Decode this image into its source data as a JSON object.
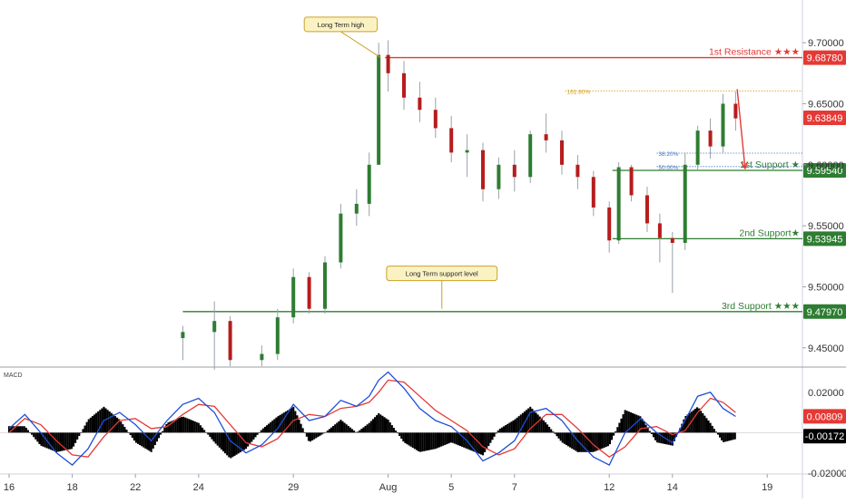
{
  "chart_data": {
    "type": "candlestick",
    "colors": {
      "up": "#2e7d32",
      "down": "#b71c1c",
      "resistance": "#e53935",
      "support": "#2e7d32",
      "macd_line": "#1e4fd8",
      "signal_line": "#e53935",
      "histogram": "#000000",
      "arrow": "#e53935",
      "fib_orange": "#d4a017",
      "fib_blue": "#4a78c2",
      "callout_bg": "#fbf2c4",
      "callout_border": "#c9a227"
    },
    "x_axis": {
      "ticks": [
        {
          "label": "16",
          "day": 0
        },
        {
          "label": "18",
          "day": 2
        },
        {
          "label": "22",
          "day": 4
        },
        {
          "label": "24",
          "day": 6
        },
        {
          "label": "29",
          "day": 9
        },
        {
          "label": "Aug",
          "day": 12
        },
        {
          "label": "5",
          "day": 14
        },
        {
          "label": "7",
          "day": 16
        },
        {
          "label": "12",
          "day": 19
        },
        {
          "label": "14",
          "day": 21
        },
        {
          "label": "19",
          "day": 24
        }
      ]
    },
    "price_axis": {
      "range": [
        9.435,
        9.735
      ],
      "ticks": [
        {
          "value": 9.7,
          "label": "9.70000"
        },
        {
          "value": 9.65,
          "label": "9.65000"
        },
        {
          "value": 9.6,
          "label": "9.60000"
        },
        {
          "value": 9.55,
          "label": "9.55000"
        },
        {
          "value": 9.5,
          "label": "9.50000"
        },
        {
          "value": 9.45,
          "label": "9.45000"
        }
      ],
      "current_price": {
        "value": 9.63849,
        "label": "9.63849"
      }
    },
    "levels": [
      {
        "name": "1st Resistance ★★★",
        "value": 9.6878,
        "label": "9.68780",
        "kind": "resistance",
        "from_day": 11.9
      },
      {
        "name": "1st Support ★",
        "value": 9.5954,
        "label": "9.59540",
        "kind": "support",
        "from_day": 19.1
      },
      {
        "name": "2nd Support★",
        "value": 9.53945,
        "label": "9.53945",
        "kind": "support",
        "from_day": 19.1
      },
      {
        "name": "3rd Support ★★★",
        "value": 9.4797,
        "label": "9.47970",
        "kind": "support",
        "from_day": 5.5
      }
    ],
    "fib_levels": [
      {
        "label": "161.80%",
        "value": 9.6605,
        "from_day": 17.6,
        "color": "orange"
      },
      {
        "label": "38.20%",
        "value": 9.6095,
        "from_day": 20.5,
        "color": "blue"
      },
      {
        "label": "50.00%",
        "value": 9.5985,
        "from_day": 20.5,
        "color": "blue"
      }
    ],
    "annotations": [
      {
        "text": "Long Term high",
        "day": 10.5,
        "price": 9.715,
        "target_day": 11.75,
        "target_price": 9.688
      },
      {
        "text": "Long Term support level",
        "day": 13.7,
        "price": 9.511,
        "target_day": 13.7,
        "target_price": 9.482
      }
    ],
    "arrow": {
      "from_day": 23.05,
      "from_price": 9.662,
      "to_day": 23.3,
      "to_price": 9.597
    },
    "ohlc": [
      [
        5.5,
        9.458,
        9.468,
        9.44,
        9.463
      ],
      [
        6.5,
        9.463,
        9.488,
        9.432,
        9.472
      ],
      [
        7.0,
        9.472,
        9.476,
        9.435,
        9.44
      ],
      [
        8.0,
        9.44,
        9.452,
        9.435,
        9.445
      ],
      [
        8.5,
        9.445,
        9.482,
        9.44,
        9.475
      ],
      [
        9.0,
        9.475,
        9.515,
        9.47,
        9.508
      ],
      [
        9.5,
        9.508,
        9.512,
        9.478,
        9.482
      ],
      [
        10.0,
        9.482,
        9.525,
        9.478,
        9.52
      ],
      [
        10.5,
        9.52,
        9.568,
        9.515,
        9.56
      ],
      [
        11.0,
        9.56,
        9.58,
        9.55,
        9.568
      ],
      [
        11.4,
        9.568,
        9.61,
        9.558,
        9.6
      ],
      [
        11.7,
        9.6,
        9.7,
        9.6,
        9.69
      ],
      [
        12.0,
        9.69,
        9.702,
        9.66,
        9.675
      ],
      [
        12.5,
        9.675,
        9.685,
        9.645,
        9.655
      ],
      [
        13.0,
        9.655,
        9.668,
        9.635,
        9.645
      ],
      [
        13.5,
        9.645,
        9.655,
        9.622,
        9.63
      ],
      [
        14.0,
        9.63,
        9.64,
        9.602,
        9.61
      ],
      [
        14.5,
        9.61,
        9.625,
        9.59,
        9.612
      ],
      [
        15.0,
        9.612,
        9.618,
        9.57,
        9.58
      ],
      [
        15.5,
        9.58,
        9.606,
        9.572,
        9.6
      ],
      [
        16.0,
        9.6,
        9.612,
        9.578,
        9.59
      ],
      [
        16.5,
        9.59,
        9.628,
        9.585,
        9.625
      ],
      [
        17.0,
        9.625,
        9.642,
        9.61,
        9.62
      ],
      [
        17.5,
        9.62,
        9.628,
        9.592,
        9.6
      ],
      [
        18.0,
        9.6,
        9.608,
        9.58,
        9.59
      ],
      [
        18.5,
        9.59,
        9.595,
        9.558,
        9.565
      ],
      [
        19.0,
        9.565,
        9.57,
        9.528,
        9.538
      ],
      [
        19.3,
        9.538,
        9.602,
        9.535,
        9.598
      ],
      [
        19.7,
        9.598,
        9.6,
        9.57,
        9.575
      ],
      [
        20.2,
        9.575,
        9.582,
        9.545,
        9.552
      ],
      [
        20.6,
        9.552,
        9.56,
        9.52,
        9.54
      ],
      [
        21.0,
        9.54,
        9.545,
        9.495,
        9.536
      ],
      [
        21.4,
        9.536,
        9.61,
        9.53,
        9.6
      ],
      [
        21.8,
        9.6,
        9.632,
        9.596,
        9.628
      ],
      [
        22.2,
        9.628,
        9.638,
        9.605,
        9.615
      ],
      [
        22.6,
        9.615,
        9.658,
        9.61,
        9.65
      ],
      [
        23.0,
        9.65,
        9.66,
        9.628,
        9.638
      ]
    ],
    "macd": {
      "label": "MACD",
      "range": [
        -0.02,
        0.032
      ],
      "ticks": [
        {
          "value": 0.02,
          "label": "0.02000"
        },
        {
          "value": -0.02,
          "label": "-0.02000"
        }
      ],
      "macd_value": {
        "value": 0.00809,
        "label": "0.00809"
      },
      "hist_value": {
        "value": -0.00172,
        "label": "-0.00172"
      },
      "macd_line": [
        [
          0.0,
          0.002
        ],
        [
          0.5,
          0.009
        ],
        [
          1.0,
          0.0
        ],
        [
          1.5,
          -0.01
        ],
        [
          2.0,
          -0.016
        ],
        [
          2.5,
          -0.008
        ],
        [
          3.0,
          0.006
        ],
        [
          3.5,
          0.01
        ],
        [
          4.0,
          0.004
        ],
        [
          4.5,
          -0.004
        ],
        [
          5.0,
          0.006
        ],
        [
          5.5,
          0.014
        ],
        [
          6.0,
          0.017
        ],
        [
          6.5,
          0.01
        ],
        [
          7.0,
          -0.004
        ],
        [
          7.5,
          -0.01
        ],
        [
          8.0,
          -0.006
        ],
        [
          8.5,
          0.002
        ],
        [
          9.0,
          0.014
        ],
        [
          9.5,
          0.006
        ],
        [
          10.0,
          0.008
        ],
        [
          10.5,
          0.016
        ],
        [
          11.0,
          0.013
        ],
        [
          11.4,
          0.018
        ],
        [
          11.7,
          0.026
        ],
        [
          12.0,
          0.03
        ],
        [
          12.5,
          0.022
        ],
        [
          13.0,
          0.012
        ],
        [
          13.5,
          0.006
        ],
        [
          14.0,
          0.003
        ],
        [
          14.5,
          -0.004
        ],
        [
          15.0,
          -0.014
        ],
        [
          15.5,
          -0.01
        ],
        [
          16.0,
          -0.004
        ],
        [
          16.5,
          0.01
        ],
        [
          17.0,
          0.012
        ],
        [
          17.5,
          0.006
        ],
        [
          18.0,
          -0.004
        ],
        [
          18.5,
          -0.012
        ],
        [
          19.0,
          -0.016
        ],
        [
          19.5,
          0.0
        ],
        [
          20.0,
          0.007
        ],
        [
          20.5,
          0.0
        ],
        [
          21.0,
          -0.005
        ],
        [
          21.4,
          0.006
        ],
        [
          21.8,
          0.018
        ],
        [
          22.2,
          0.02
        ],
        [
          22.6,
          0.012
        ],
        [
          23.0,
          0.008
        ]
      ],
      "signal_line": [
        [
          0.0,
          0.0
        ],
        [
          0.5,
          0.007
        ],
        [
          1.0,
          0.004
        ],
        [
          1.5,
          -0.004
        ],
        [
          2.0,
          -0.011
        ],
        [
          2.5,
          -0.012
        ],
        [
          3.0,
          -0.002
        ],
        [
          3.5,
          0.006
        ],
        [
          4.0,
          0.007
        ],
        [
          4.5,
          0.002
        ],
        [
          5.0,
          0.003
        ],
        [
          5.5,
          0.009
        ],
        [
          6.0,
          0.014
        ],
        [
          6.5,
          0.013
        ],
        [
          7.0,
          0.004
        ],
        [
          7.5,
          -0.005
        ],
        [
          8.0,
          -0.007
        ],
        [
          8.5,
          -0.003
        ],
        [
          9.0,
          0.006
        ],
        [
          9.5,
          0.009
        ],
        [
          10.0,
          0.008
        ],
        [
          10.5,
          0.012
        ],
        [
          11.0,
          0.013
        ],
        [
          11.4,
          0.015
        ],
        [
          11.7,
          0.02
        ],
        [
          12.0,
          0.026
        ],
        [
          12.5,
          0.025
        ],
        [
          13.0,
          0.018
        ],
        [
          13.5,
          0.011
        ],
        [
          14.0,
          0.006
        ],
        [
          14.5,
          0.001
        ],
        [
          15.0,
          -0.007
        ],
        [
          15.5,
          -0.011
        ],
        [
          16.0,
          -0.008
        ],
        [
          16.5,
          0.002
        ],
        [
          17.0,
          0.009
        ],
        [
          17.5,
          0.009
        ],
        [
          18.0,
          0.002
        ],
        [
          18.5,
          -0.006
        ],
        [
          19.0,
          -0.012
        ],
        [
          19.5,
          -0.007
        ],
        [
          20.0,
          0.002
        ],
        [
          20.5,
          0.003
        ],
        [
          21.0,
          -0.001
        ],
        [
          21.4,
          0.001
        ],
        [
          21.8,
          0.01
        ],
        [
          22.2,
          0.017
        ],
        [
          22.6,
          0.015
        ],
        [
          23.0,
          0.01
        ]
      ]
    }
  }
}
